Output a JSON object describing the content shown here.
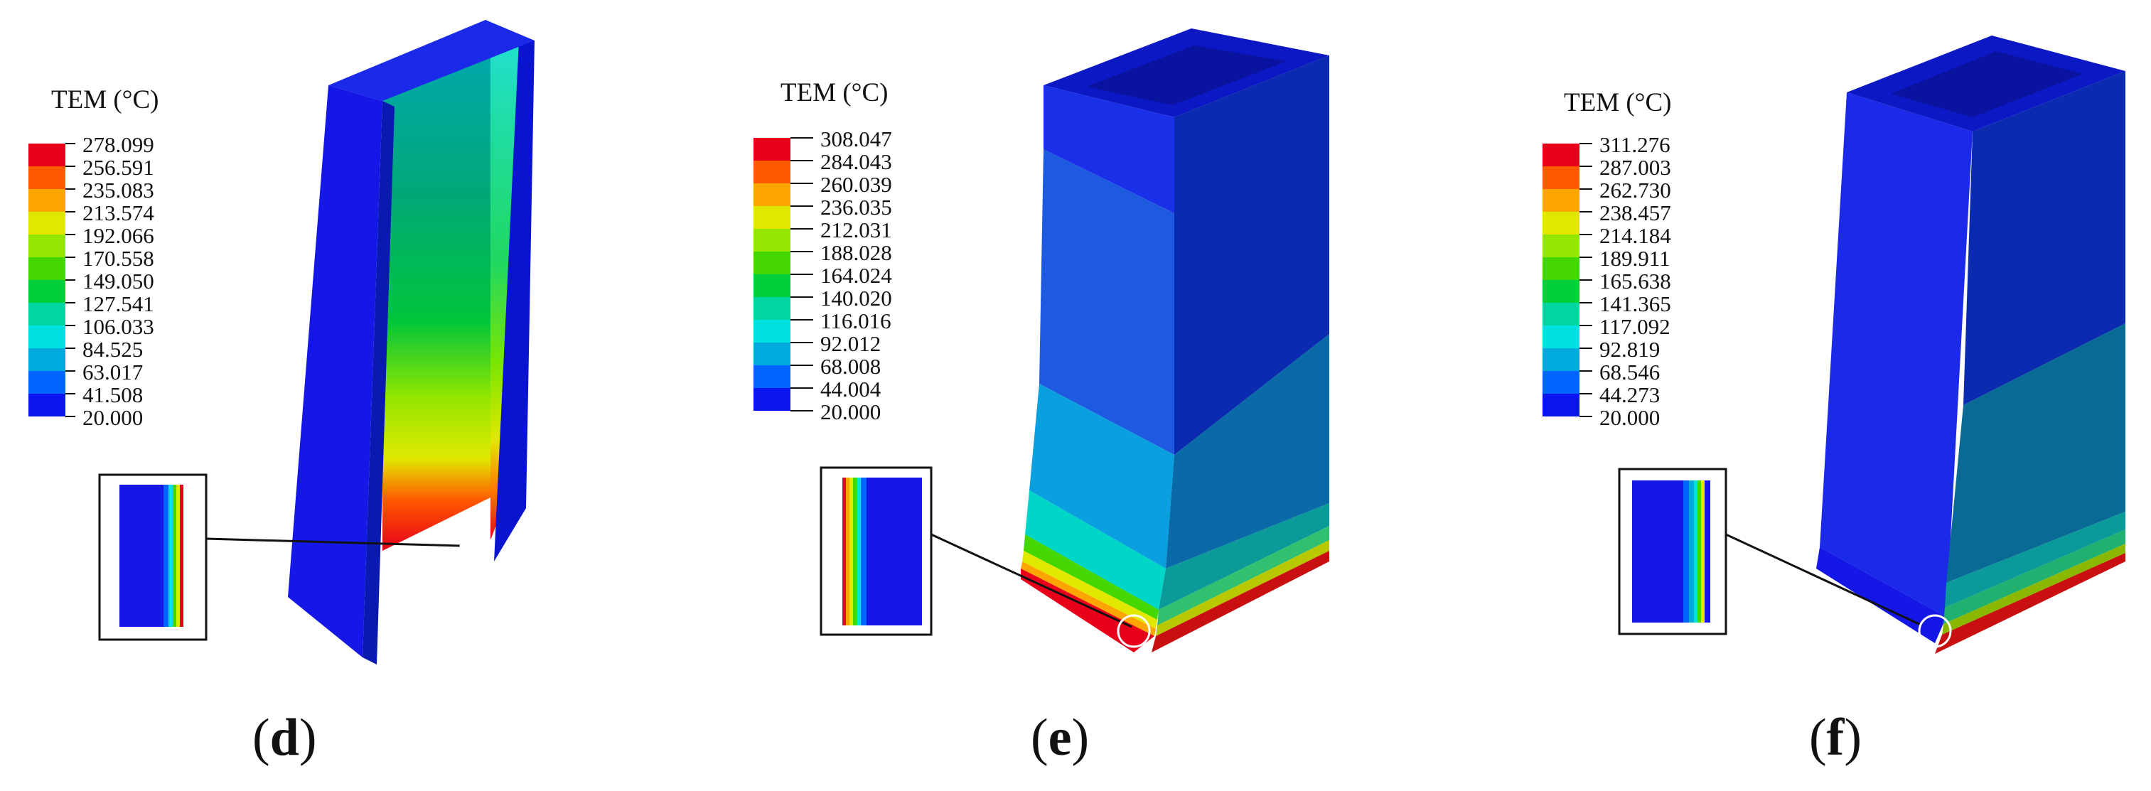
{
  "legend_title": "TEM (°C)",
  "panels": [
    {
      "id": "d",
      "caption_letter": "d",
      "legend_values": [
        "278.099",
        "256.591",
        "235.083",
        "213.574",
        "192.066",
        "170.558",
        "149.050",
        "127.541",
        "106.033",
        "84.525",
        "63.017",
        "41.508",
        "20.000"
      ]
    },
    {
      "id": "e",
      "caption_letter": "e",
      "legend_values": [
        "308.047",
        "284.043",
        "260.039",
        "236.035",
        "212.031",
        "188.028",
        "164.024",
        "140.020",
        "116.016",
        "92.012",
        "68.008",
        "44.004",
        "20.000"
      ]
    },
    {
      "id": "f",
      "caption_letter": "f",
      "legend_values": [
        "311.276",
        "287.003",
        "262.730",
        "238.457",
        "214.184",
        "189.911",
        "165.638",
        "141.365",
        "117.092",
        "92.819",
        "68.546",
        "44.273",
        "20.000"
      ]
    }
  ],
  "colors": {
    "scale": [
      "#e8001a",
      "#ff5a00",
      "#ffa500",
      "#e1e800",
      "#93e600",
      "#44d800",
      "#00d03a",
      "#00d6a2",
      "#00e0e0",
      "#00aadd",
      "#0064ff",
      "#0a14ee"
    ],
    "body_blue": "#1417e6",
    "body_side": "#0a1ab0",
    "body_top": "#0c18c4"
  }
}
